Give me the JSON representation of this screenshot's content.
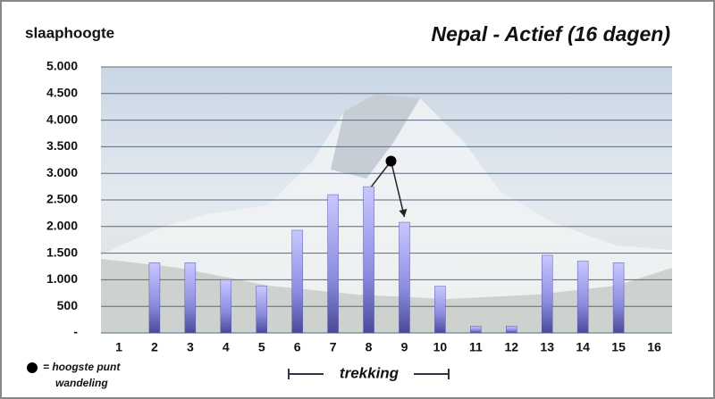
{
  "chart_data": {
    "type": "bar",
    "title": "Nepal - Actief (16 dagen)",
    "y_label": "slaaphoogte",
    "categories": [
      "1",
      "2",
      "3",
      "4",
      "5",
      "6",
      "7",
      "8",
      "9",
      "10",
      "11",
      "12",
      "13",
      "14",
      "15",
      "16"
    ],
    "values": [
      null,
      1320,
      1320,
      1000,
      880,
      1930,
      2600,
      2750,
      2080,
      880,
      130,
      130,
      1460,
      1350,
      1320,
      null
    ],
    "ylim": [
      0,
      5000
    ],
    "yticks": [
      {
        "value": 0,
        "label": "-"
      },
      500,
      {
        "value": 1000,
        "label": "1.000"
      },
      {
        "value": 1500,
        "label": "1.500"
      },
      {
        "value": 2000,
        "label": "2.000"
      },
      {
        "value": 2500,
        "label": "2.500"
      },
      {
        "value": 3000,
        "label": "3.000"
      },
      {
        "value": 3500,
        "label": "3.500"
      },
      {
        "value": 4000,
        "label": "4.000"
      },
      {
        "value": 4500,
        "label": "4.500"
      },
      {
        "value": 5000,
        "label": "5.000"
      }
    ],
    "grid": true,
    "color": "#7070d0",
    "highest_point": 3230,
    "legend_text": [
      "= hoogste punt",
      "wandeling"
    ],
    "range_label": "trekking"
  }
}
